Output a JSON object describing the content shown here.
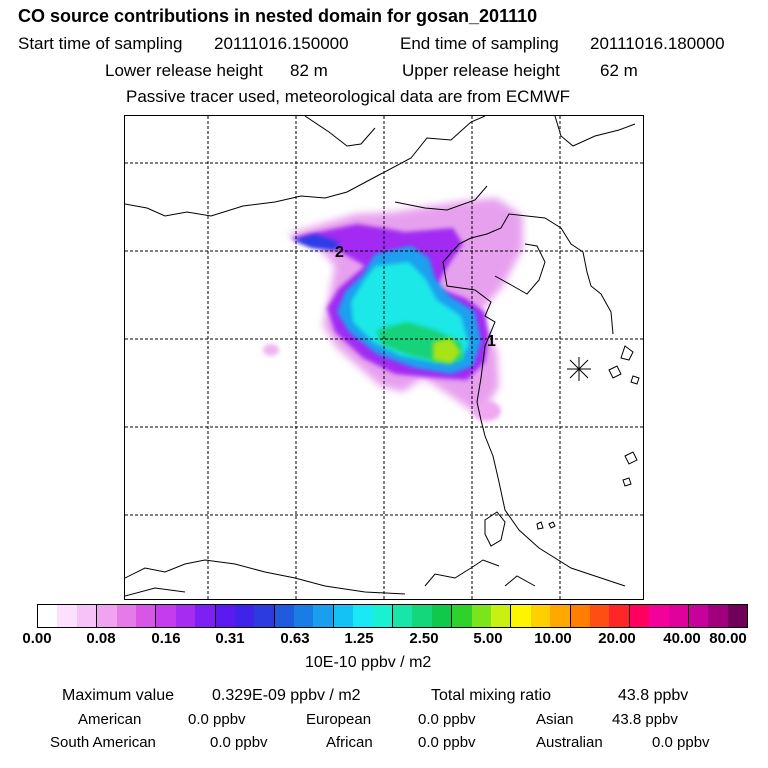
{
  "header": {
    "title": "CO  source contributions in nested domain for gosan_201110",
    "start_label": "Start time of sampling",
    "start_value": "20111016.150000",
    "end_label": "End time of sampling",
    "end_value": "20111016.180000",
    "lower_label": "Lower release height",
    "lower_value": "82 m",
    "upper_label": "Upper release height",
    "upper_value": "62 m",
    "note": "Passive tracer used, meteorological data are from ECMWF"
  },
  "map": {
    "markers": [
      {
        "label": "1"
      },
      {
        "label": "2"
      }
    ],
    "receptor_symbol": "receptor-star"
  },
  "colorbar": {
    "colors": [
      "#ffffff",
      "#fde0fd",
      "#f7c2f7",
      "#f0a4f0",
      "#e77ae9",
      "#d756e8",
      "#c53bee",
      "#a52cf0",
      "#7d20f2",
      "#5a1af0",
      "#3f23e8",
      "#2b3be0",
      "#1f5bdc",
      "#1a7de6",
      "#1a9ff0",
      "#14c2f5",
      "#1ae8f5",
      "#1af0d2",
      "#18e6a8",
      "#14d67a",
      "#10c84a",
      "#2fd22a",
      "#7ae41c",
      "#c8f010",
      "#fff400",
      "#ffd000",
      "#ffa800",
      "#ff7e00",
      "#ff4e14",
      "#ff2628",
      "#ff0060",
      "#f4009a",
      "#e0009c",
      "#c8009c",
      "#a0007c",
      "#70005a"
    ],
    "ticks": [
      "0.00",
      "0.08",
      "0.16",
      "0.31",
      "0.63",
      "1.25",
      "2.50",
      "5.00",
      "10.00",
      "20.00",
      "40.00",
      "80.00"
    ],
    "units": "10E-10 ppbv / m2"
  },
  "summary": {
    "max_label": "Maximum value",
    "max_value": "0.329E-09 ppbv / m2",
    "total_label": "Total mixing ratio",
    "total_value": "43.8 ppbv",
    "regions": [
      {
        "name": "American",
        "value": "0.0 ppbv"
      },
      {
        "name": "European",
        "value": "0.0 ppbv"
      },
      {
        "name": "Asian",
        "value": "43.8 ppbv"
      },
      {
        "name": "South American",
        "value": "0.0 ppbv"
      },
      {
        "name": "African",
        "value": "0.0 ppbv"
      },
      {
        "name": "Australian",
        "value": "0.0 ppbv"
      }
    ]
  }
}
